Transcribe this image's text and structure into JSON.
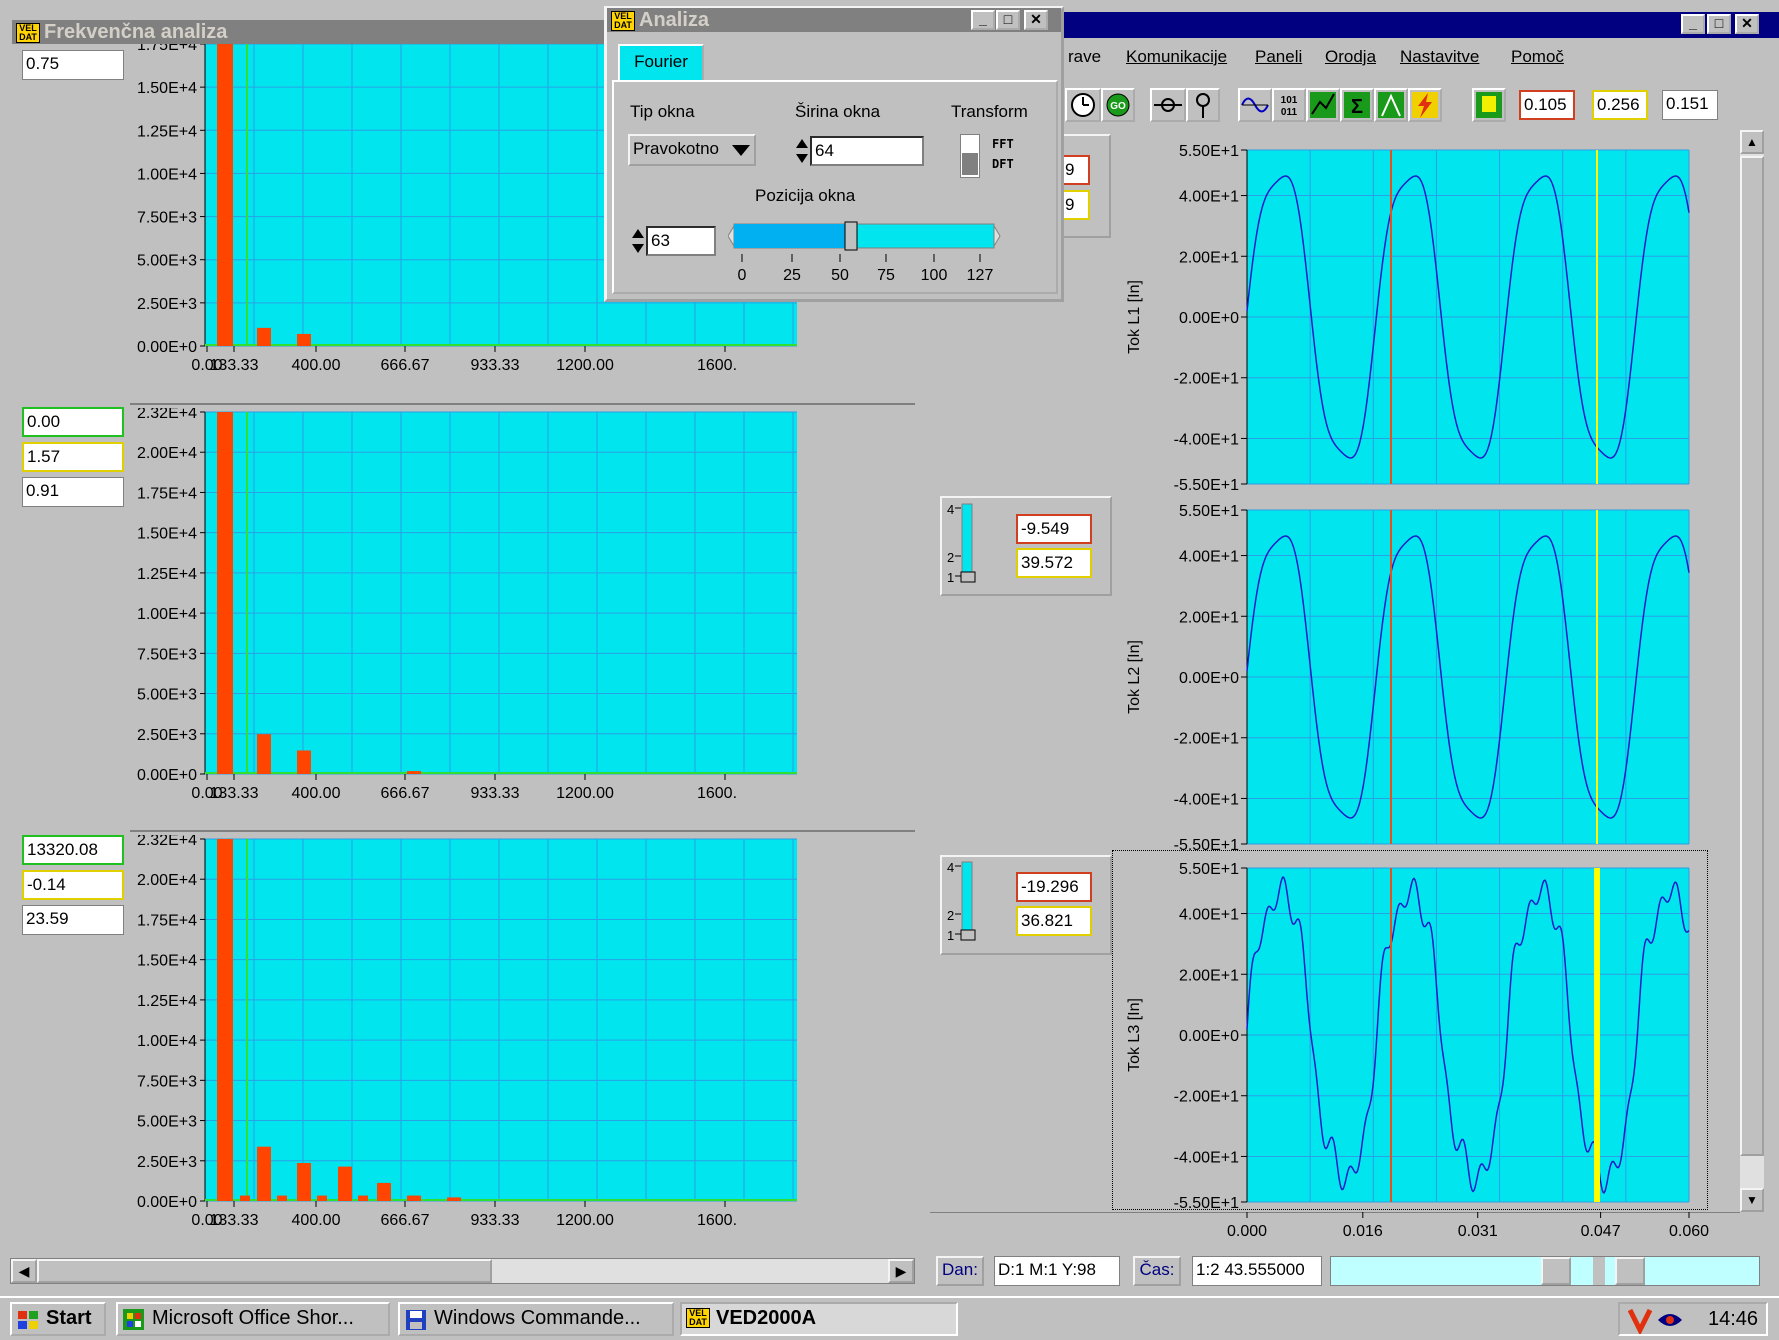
{
  "freq_window": {
    "title": "Frekvenčna analiza",
    "x_ticks": [
      "0.00",
      "133.33",
      "400.00",
      "666.67",
      "933.33",
      "1200.00",
      "1600."
    ],
    "panels": [
      {
        "values": [
          "0.75"
        ],
        "y_ticks": [
          "1.75E+4",
          "1.50E+4",
          "1.25E+4",
          "1.00E+4",
          "7.50E+3",
          "5.00E+3",
          "2.50E+3",
          "0.00E+0"
        ]
      },
      {
        "values": [
          "0.00",
          "1.57",
          "0.91"
        ],
        "y_ticks": [
          "2.32E+4",
          "2.00E+4",
          "1.75E+4",
          "1.50E+4",
          "1.25E+4",
          "1.00E+4",
          "7.50E+3",
          "5.00E+3",
          "2.50E+3",
          "0.00E+0"
        ]
      },
      {
        "values": [
          "13320.08",
          "-0.14",
          "23.59"
        ],
        "y_ticks": [
          "2.32E+4",
          "2.00E+4",
          "1.75E+4",
          "1.50E+4",
          "1.25E+4",
          "1.00E+4",
          "7.50E+3",
          "5.00E+3",
          "2.50E+3",
          "0.00E+0"
        ]
      }
    ]
  },
  "analiza_dialog": {
    "title": "Analiza",
    "tab": "Fourier",
    "tip_okna_label": "Tip okna",
    "tip_okna_value": "Pravokotno",
    "sirina_label": "Širina okna",
    "sirina_value": "64",
    "transform_label": "Transform",
    "transform_fft": "FFT",
    "transform_dft": "DFT",
    "pozicija_label": "Pozicija  okna",
    "pozicija_value": "63",
    "slider_ticks": [
      "0",
      "25",
      "50",
      "75",
      "100",
      "127"
    ]
  },
  "main_window": {
    "menu": [
      "rave",
      "Komunikacije",
      "Paneli",
      "Orodja",
      "Nastavitve",
      "Pomoč"
    ],
    "toolbar_values": [
      "0.105",
      "0.256",
      "0.151"
    ],
    "go_label": "GO",
    "binary_label": "101 011",
    "channels": [
      {
        "ylabel": "Tok L1 [In]",
        "y_ticks": [
          "5.50E+1",
          "4.00E+1",
          "2.00E+1",
          "0.00E+0",
          "-2.00E+1",
          "-4.00E+1",
          "-5.50E+1"
        ],
        "cursor_values": [
          "9",
          "9"
        ],
        "slider_ticks": []
      },
      {
        "ylabel": "Tok L2 [In]",
        "y_ticks": [
          "5.50E+1",
          "4.00E+1",
          "2.00E+1",
          "0.00E+0",
          "-2.00E+1",
          "-4.00E+1",
          "-5.50E+1"
        ],
        "cursor_values": [
          "-9.549",
          "39.572"
        ],
        "slider_ticks": [
          "4",
          "2",
          "1"
        ]
      },
      {
        "ylabel": "Tok L3 [In]",
        "y_ticks": [
          "5.50E+1",
          "4.00E+1",
          "2.00E+1",
          "0.00E+0",
          "-2.00E+1",
          "-4.00E+1",
          "-5.50E+1"
        ],
        "cursor_values": [
          "-19.296",
          "36.821"
        ],
        "slider_ticks": [
          "4",
          "2",
          "1"
        ]
      }
    ],
    "time_ticks": [
      "0.000",
      "0.016",
      "0.031",
      "0.047",
      "0.060"
    ],
    "dan_label": "Dan:",
    "dan_value": "D:1 M:1 Y:98",
    "cas_label": "Čas:",
    "cas_value": "1:2  43.555000"
  },
  "taskbar": {
    "start": "Start",
    "tasks": [
      "Microsoft Office Shor...",
      "Windows Commande...",
      "VED2000A"
    ],
    "clock": "14:46"
  },
  "colors": {
    "plot_bg": "#00e5ee",
    "bar": "#ff4500",
    "trace": "#1c1cc8",
    "cursor_red": "#e8501e",
    "cursor_yellow": "#ffff00",
    "grid": "#2aa0e6"
  }
}
